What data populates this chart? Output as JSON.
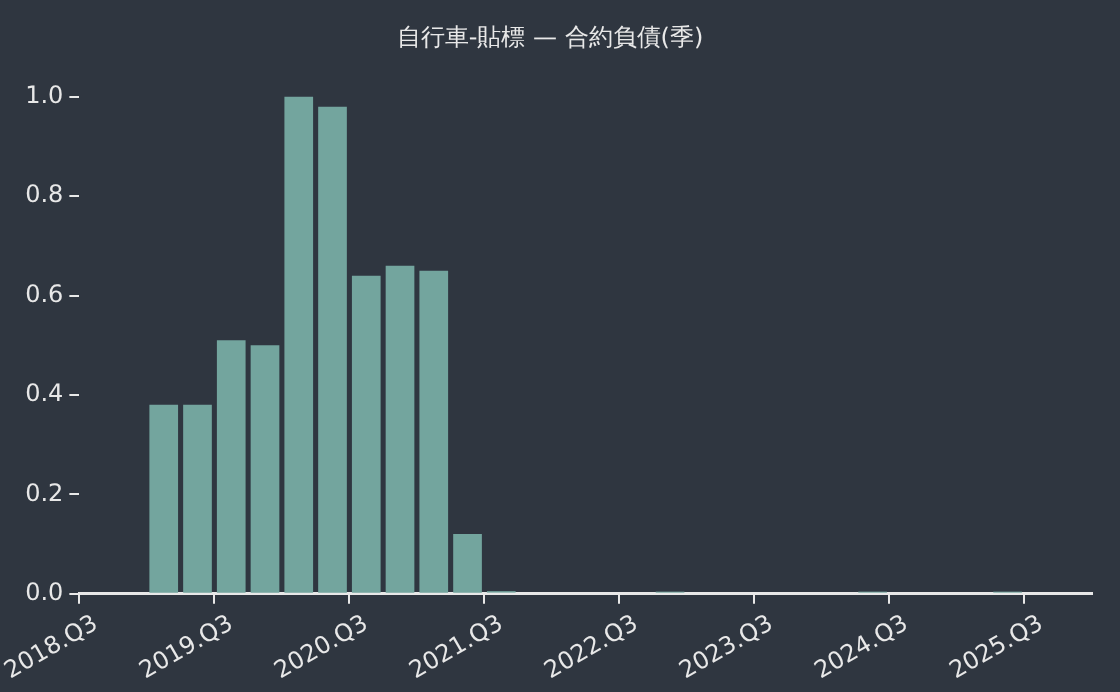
{
  "chart_data": {
    "type": "bar",
    "title": "自行車-貼標 — 合約負債(季)",
    "categories": [
      "2018.Q3",
      null,
      null,
      null,
      "2019.Q3",
      null,
      null,
      null,
      "2020.Q3",
      null,
      null,
      null,
      "2021.Q3",
      null,
      null,
      null,
      "2022.Q3",
      null,
      null,
      null,
      "2023.Q3",
      null,
      null,
      null,
      "2024.Q3",
      null,
      null,
      null,
      "2025.Q3",
      null
    ],
    "values": [
      null,
      null,
      0.38,
      0.38,
      0.51,
      0.5,
      1.0,
      0.98,
      0.64,
      0.66,
      0.65,
      0.12,
      0.005,
      null,
      null,
      null,
      null,
      0.004,
      null,
      null,
      null,
      null,
      null,
      0.004,
      null,
      null,
      null,
      0.004,
      null,
      null
    ],
    "color": "#73a59e",
    "ylim": [
      0,
      1
    ],
    "yticks": [
      {
        "value": 0,
        "label": "0.0"
      },
      {
        "value": 0.2,
        "label": "0.2"
      },
      {
        "value": 0.4,
        "label": "0.4"
      },
      {
        "value": 0.6,
        "label": "0.6"
      },
      {
        "value": 0.8,
        "label": "0.8"
      },
      {
        "value": 1,
        "label": "1.0"
      }
    ]
  }
}
